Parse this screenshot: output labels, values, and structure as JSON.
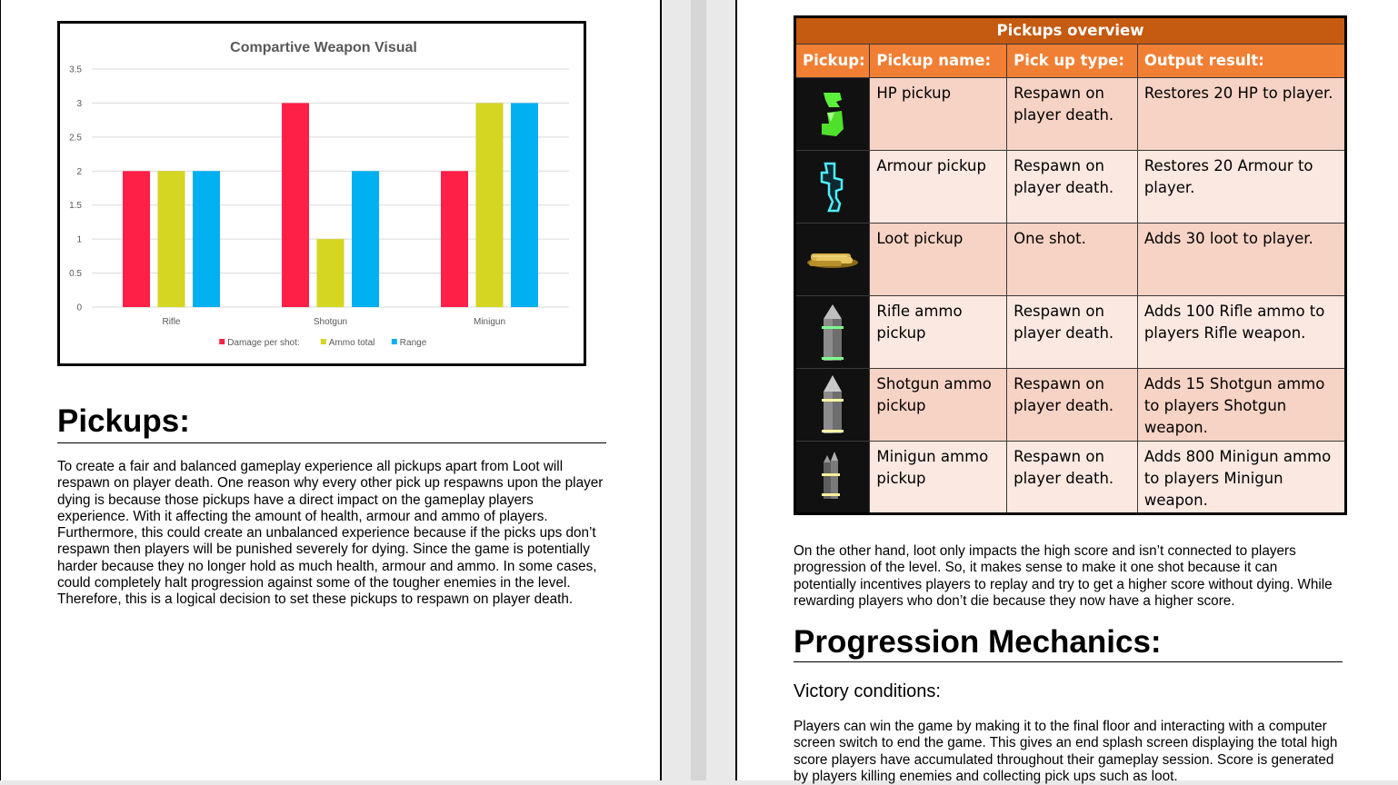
{
  "chart_data": {
    "type": "bar",
    "title": "Compartive Weapon Visual",
    "categories": [
      "Rifle",
      "Shotgun",
      "Minigun"
    ],
    "series": [
      {
        "name": "Damage per shot:",
        "color": "#ff2047",
        "values": [
          2,
          3,
          2
        ]
      },
      {
        "name": "Ammo total",
        "color": "#d4d622",
        "values": [
          2,
          1,
          3
        ]
      },
      {
        "name": "Range",
        "color": "#00b0f0",
        "values": [
          2,
          2,
          3
        ]
      }
    ],
    "ylim": [
      0,
      3.5
    ],
    "yticks": [
      "0",
      "0.5",
      "1",
      "1.5",
      "2",
      "2.5",
      "3",
      "3.5"
    ],
    "grid": true,
    "legend": "bottom"
  },
  "pickups_section": {
    "heading": "Pickups:",
    "body": "To create a fair and balanced gameplay experience all pickups apart from Loot will respawn on player death. One reason why every other pick up respawns upon the player dying is because those pickups have a direct impact on the gameplay players experience. With it affecting the amount of health, armour and ammo of players. Furthermore, this could create an unbalanced experience because if the picks ups don’t respawn then players will be punished severely for dying. Since the game is potentially harder because they no longer hold as much health, armour and ammo. In some cases, could completely halt progression against some of the tougher enemies in the level. Therefore, this is a logical decision to set these pickups to respawn on player death."
  },
  "table": {
    "caption": "Pickups overview",
    "headers": [
      "Pickup:",
      "Pickup name:",
      "Pick up type:",
      "Output result:"
    ],
    "rows": [
      {
        "icon": "hp-pickup-icon",
        "name": "HP pickup",
        "type": "Respawn on player death.",
        "result": "Restores 20 HP to player."
      },
      {
        "icon": "armour-pickup-icon",
        "name": "Armour pickup",
        "type": "Respawn on player death.",
        "result": "Restores 20 Armour to player."
      },
      {
        "icon": "loot-pickup-icon",
        "name": "Loot pickup",
        "type": "One shot.",
        "result": "Adds 30 loot to player."
      },
      {
        "icon": "rifle-ammo-icon",
        "name": "Rifle ammo pickup",
        "type": "Respawn on player death.",
        "result": "Adds 100 Rifle ammo to players Rifle weapon."
      },
      {
        "icon": "shotgun-ammo-icon",
        "name": "Shotgun ammo pickup",
        "type": "Respawn on player death.",
        "result": "Adds 15 Shotgun ammo to players Shotgun weapon."
      },
      {
        "icon": "minigun-ammo-icon",
        "name": "Minigun ammo pickup",
        "type": "Respawn on player death.",
        "result": "Adds 800 Minigun ammo to players Minigun weapon."
      }
    ],
    "colors": {
      "caption": "#c55a11",
      "header": "#f07f34",
      "row_odd": "#f7d3c5",
      "row_even": "#fbe8e0"
    }
  },
  "right_paragraph": "On the other hand, loot only impacts the high score and isn’t connected to players progression of the level. So, it makes sense to make it one shot because it can potentially incentives players to replay and try to get a higher score without dying. While rewarding players who don’t die because they now have a higher score.",
  "progression": {
    "heading": "Progression Mechanics:",
    "subheading": "Victory conditions:",
    "body": "Players can win the game by making it to the final floor and interacting with a computer screen switch to end the game. This gives an end splash screen displaying the total high score players have accumulated throughout their gameplay session. Score is generated by players killing enemies and collecting pick ups such as loot."
  }
}
